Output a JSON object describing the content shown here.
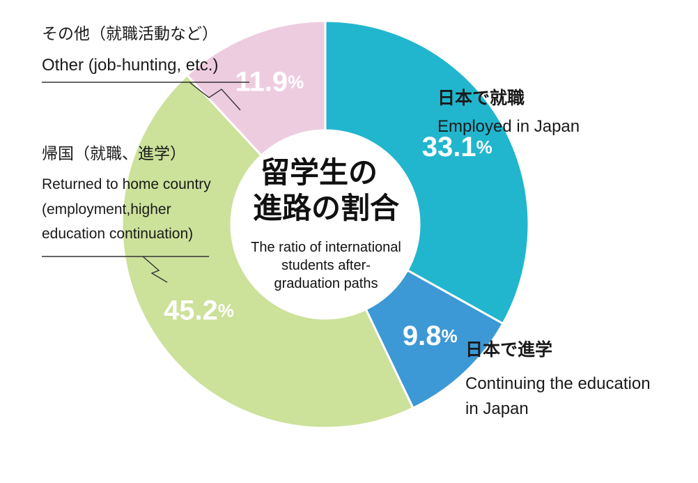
{
  "colors": {
    "employed_japan": "#21B6CE",
    "continuing_education_japan": "#3D98D6",
    "returned_home": "#CCE19A",
    "other": "#EECCE0"
  },
  "center": {
    "title_line1": "留学生の",
    "title_line2": "進路の割合",
    "subtitle_line1": "The ratio of international",
    "subtitle_line2": "students after-",
    "subtitle_line3": "graduation paths"
  },
  "chart_data": {
    "type": "pie",
    "unit": "%",
    "slices": [
      {
        "key": "employed_japan",
        "value": 33.1,
        "value_label": "33.1",
        "label_ja": "日本で就職",
        "label_en": [
          "Employed in Japan"
        ]
      },
      {
        "key": "continuing_education_japan",
        "value": 9.8,
        "value_label": "9.8",
        "label_ja": "日本で進学",
        "label_en": [
          "Continuing the education",
          "in Japan"
        ]
      },
      {
        "key": "returned_home",
        "value": 45.2,
        "value_label": "45.2",
        "label_ja": "帰国（就職、進学）",
        "label_en": [
          "Returned to home country",
          "(employment,higher",
          "education continuation)"
        ]
      },
      {
        "key": "other",
        "value": 11.9,
        "value_label": "11.9",
        "label_ja": "その他（就職活動など）",
        "label_en": [
          "Other (job-hunting, etc.)"
        ]
      }
    ]
  }
}
